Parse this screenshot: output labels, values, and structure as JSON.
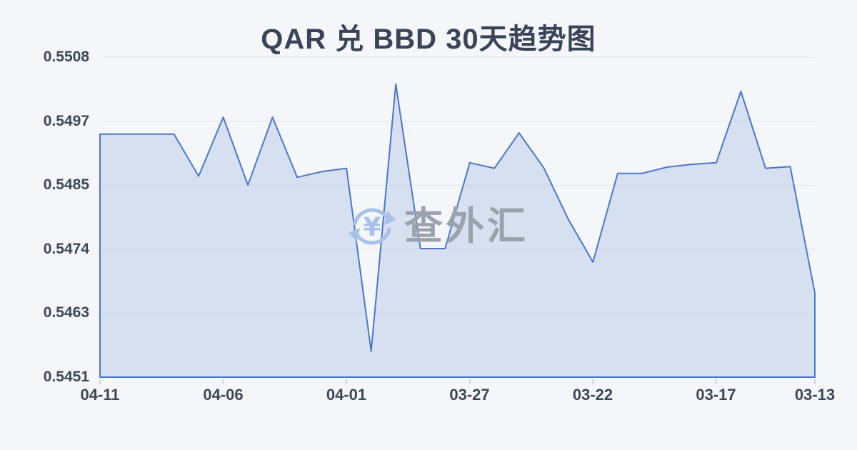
{
  "title": "QAR 兑 BBD 30天趋势图",
  "watermark": {
    "icon": "currency-exchange-icon",
    "text": "查外汇"
  },
  "colors": {
    "background": "#f4f6f9",
    "line": "#4a77cc",
    "area_fill": "rgba(74,119,204,0.17)",
    "grid": "#e3e6ec",
    "tick": "#c7ccd4",
    "title_text": "#3a4458",
    "axis_text": "#3d4856",
    "watermark_text": "#9aa2ad",
    "watermark_icon": "#a7c1e9"
  },
  "chart_data": {
    "type": "area",
    "title": "QAR 兑 BBD 30天趋势图",
    "x": [
      "04-11",
      "04-10",
      "04-09",
      "04-08",
      "04-07",
      "04-06",
      "04-05",
      "04-04",
      "04-03",
      "04-02",
      "04-01",
      "03-31",
      "03-30",
      "03-29",
      "03-28",
      "03-27",
      "03-26",
      "03-25",
      "03-24",
      "03-23",
      "03-22",
      "03-21",
      "03-20",
      "03-19",
      "03-18",
      "03-17",
      "03-16",
      "03-15",
      "03-14",
      "03-13"
    ],
    "values": [
      0.54943,
      0.54943,
      0.54943,
      0.54943,
      0.54868,
      0.54973,
      0.54852,
      0.54973,
      0.54866,
      0.54876,
      0.54882,
      0.54556,
      0.55032,
      0.54739,
      0.54739,
      0.54892,
      0.54882,
      0.54945,
      0.54883,
      0.54791,
      0.54715,
      0.54873,
      0.54873,
      0.54884,
      0.54889,
      0.54892,
      0.55019,
      0.54882,
      0.54885,
      0.5466
    ],
    "xticks": [
      "04-11",
      "04-06",
      "04-01",
      "03-27",
      "03-22",
      "03-17",
      "03-13"
    ],
    "yticks": [
      "0.5508",
      "0.5497",
      "0.5485",
      "0.5474",
      "0.5463",
      "0.5451"
    ],
    "ylim": [
      0.5451,
      0.5508
    ],
    "xlabel": "",
    "ylabel": "",
    "grid": true,
    "legend": false,
    "note_axis_order": "x runs newest (04-11) at left to oldest (03-13) at right; yticks listed top to bottom"
  }
}
